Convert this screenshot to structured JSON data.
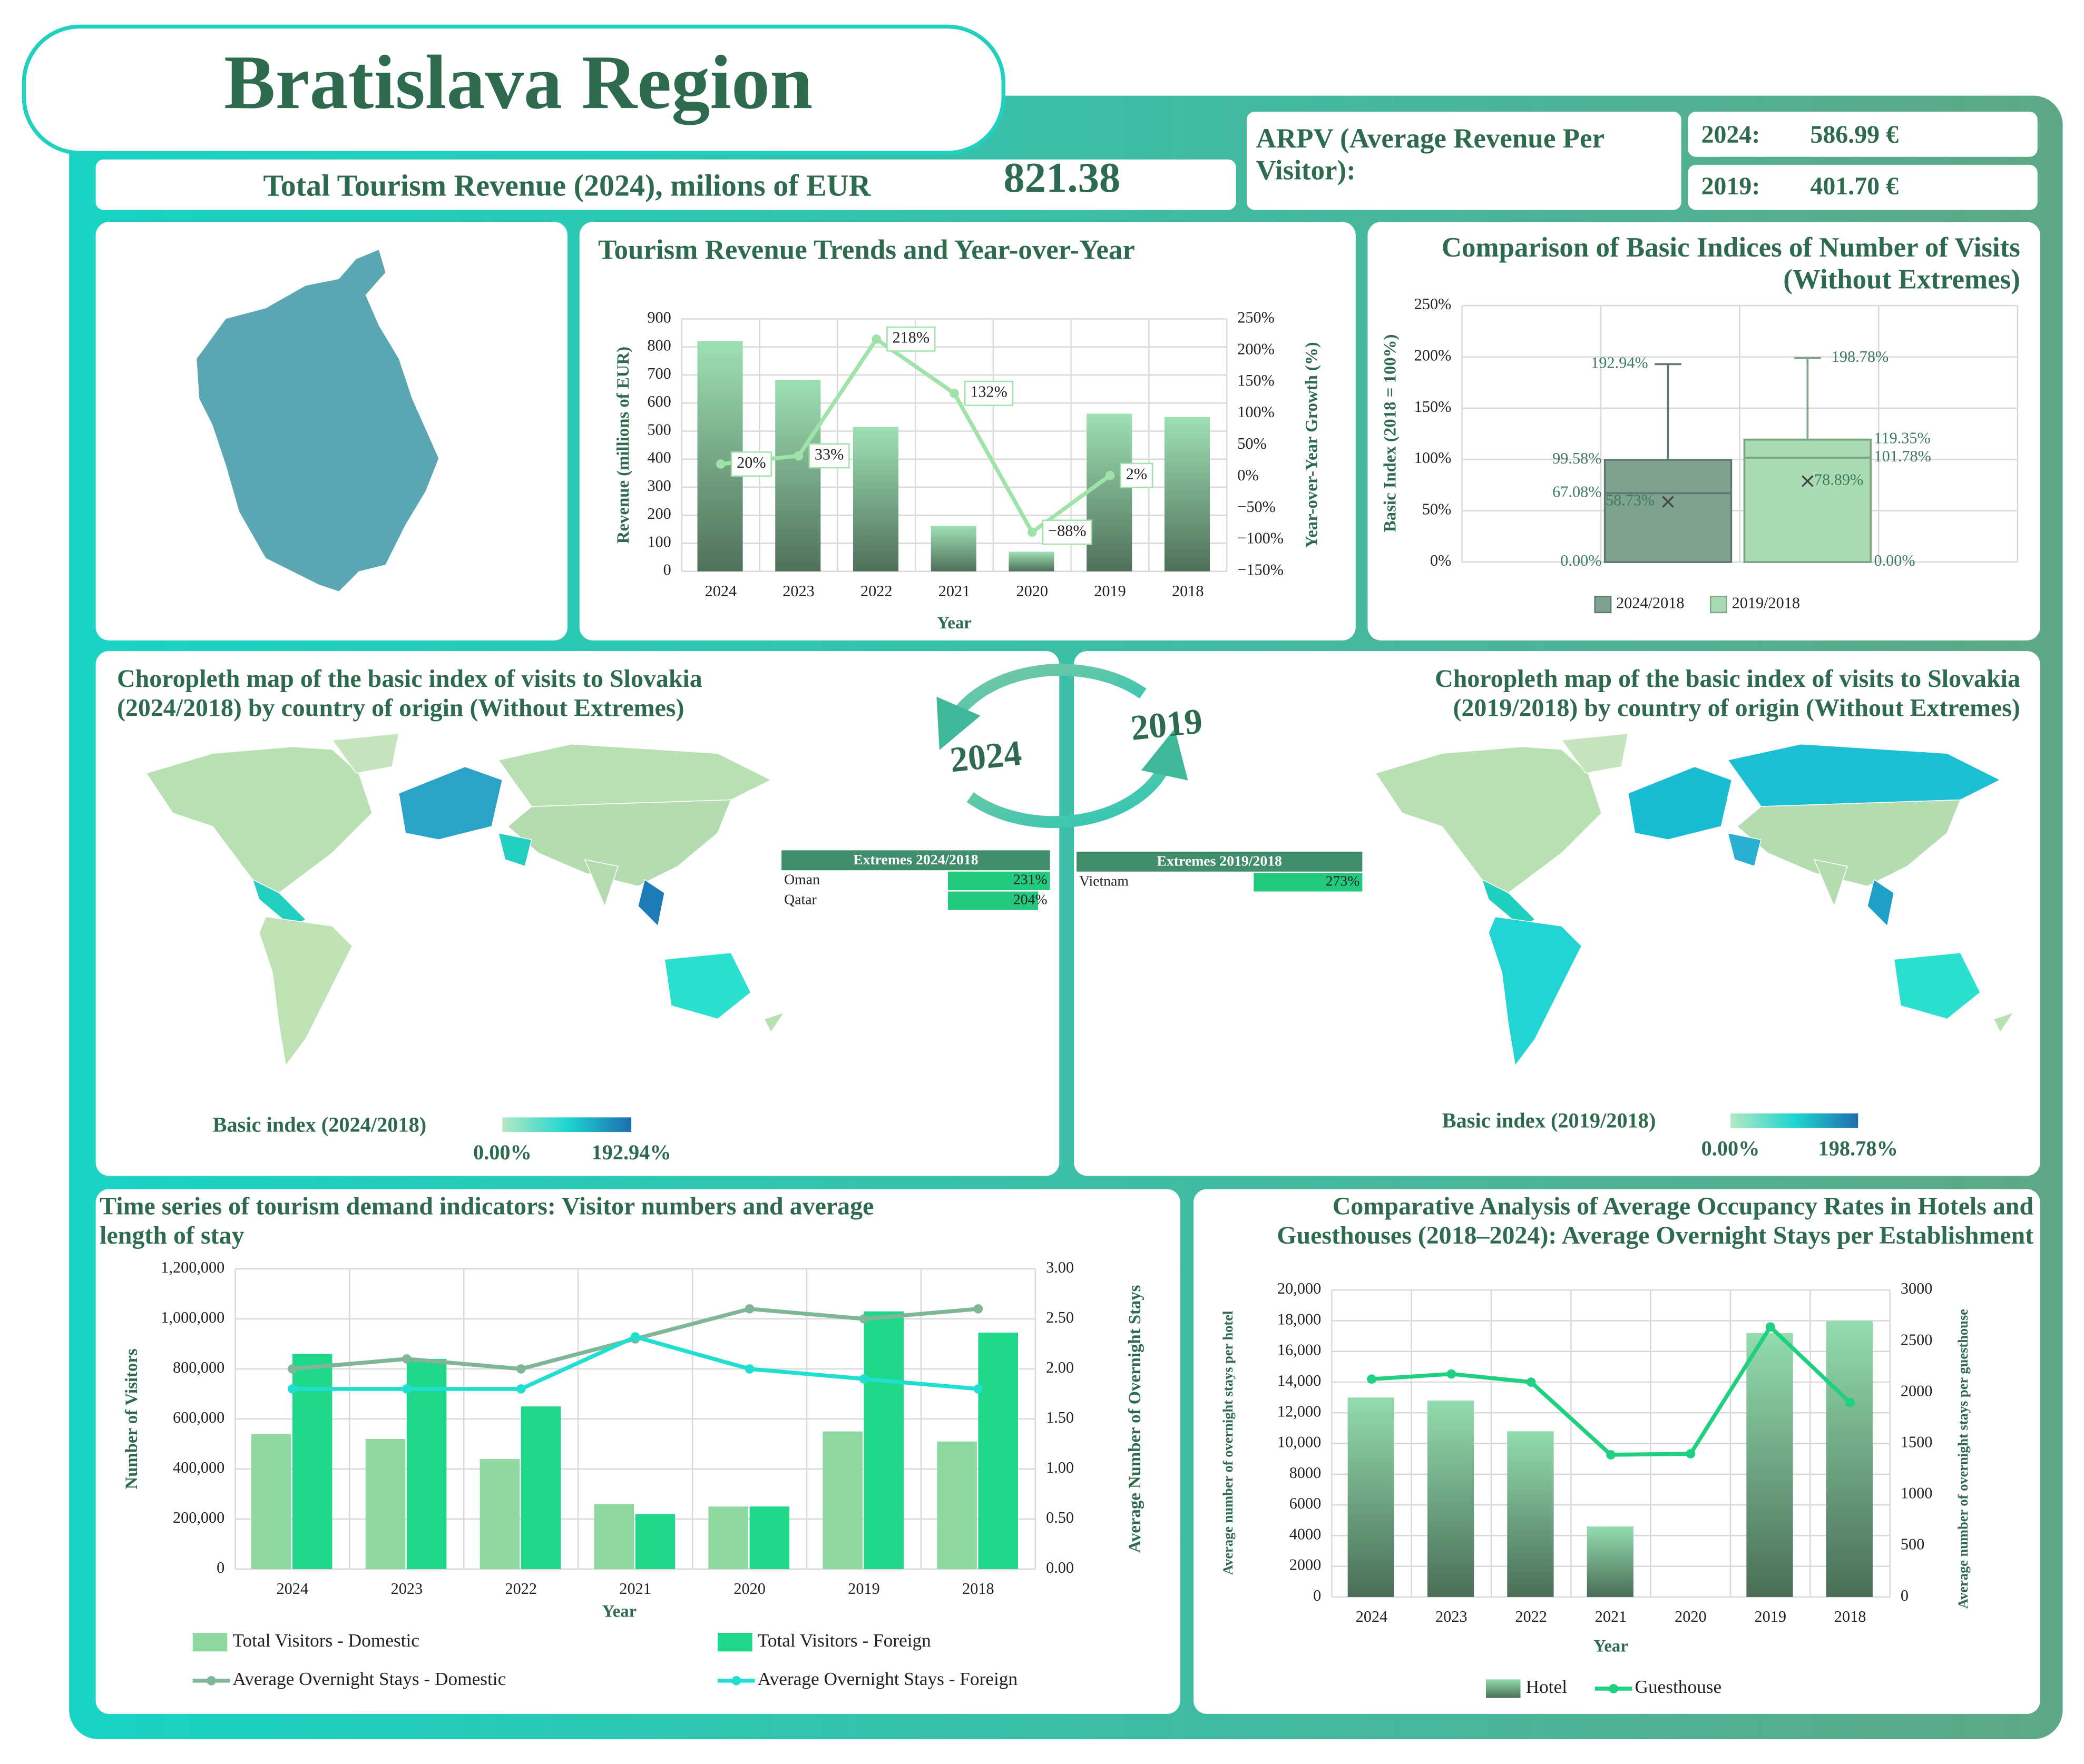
{
  "title": "Bratislava Region",
  "revenue": {
    "label": "Total Tourism Revenue (2024), milions of EUR",
    "value": "821.38"
  },
  "arpv": {
    "label": "ARPV (Average Revenue Per Visitor):",
    "rows": [
      {
        "year": "2024:",
        "value": "586.99 €"
      },
      {
        "year": "2019:",
        "value": "401.70 €"
      }
    ]
  },
  "cycle_labels": [
    "2024",
    "2019"
  ],
  "chart_data": [
    {
      "type": "bar",
      "title": "Tourism Revenue Trends and Year-over-Year",
      "x_label": "Year",
      "y_label": "Revenue (millions of EUR)",
      "y2_label": "Year-over-Year Growth (%)",
      "gradient": true,
      "grid": true,
      "categories": [
        "2024",
        "2023",
        "2022",
        "2021",
        "2020",
        "2019",
        "2018"
      ],
      "series": [
        {
          "type": "bar",
          "color": "#9ee0b4",
          "values": [
            821,
            683,
            515,
            162,
            70,
            562,
            550
          ]
        },
        {
          "type": "line",
          "axis": "y2",
          "color": "#9fe3a9",
          "values": [
            20,
            33,
            218,
            132,
            -88,
            2,
            null
          ],
          "value_labels": [
            "20%",
            "33%",
            "218%",
            "132%",
            "−88%",
            "2%",
            null
          ]
        }
      ],
      "ylim": [
        0,
        900
      ],
      "yticks": [
        0,
        100,
        200,
        300,
        400,
        500,
        600,
        700,
        800,
        900
      ],
      "y2lim": [
        -150,
        250
      ],
      "y2ticks": [
        {
          "value": -150,
          "label": "−150%"
        },
        {
          "value": -100,
          "label": "−100%"
        },
        {
          "value": -50,
          "label": "−50%"
        },
        {
          "value": 0,
          "label": "0%"
        },
        {
          "value": 50,
          "label": "50%"
        },
        {
          "value": 100,
          "label": "100%"
        },
        {
          "value": 150,
          "label": "150%"
        },
        {
          "value": 200,
          "label": "200%"
        },
        {
          "value": 250,
          "label": "250%"
        }
      ]
    },
    {
      "type": "box",
      "title": "Comparison of Basic Indices of Number of Visits (Without Extremes)",
      "y_label": "Basic Index (2018 = 100%)",
      "grid": true,
      "ylim": [
        0,
        250
      ],
      "yticks": [
        {
          "value": 0,
          "label": "0%"
        },
        {
          "value": 50,
          "label": "50%"
        },
        {
          "value": 100,
          "label": "100%"
        },
        {
          "value": 150,
          "label": "150%"
        },
        {
          "value": 200,
          "label": "200%"
        },
        {
          "value": 250,
          "label": "250%"
        }
      ],
      "series": [
        {
          "name": "2024/2018",
          "color": "#7fa190",
          "min": 0,
          "q1": 0,
          "median": 67.08,
          "mean": 58.73,
          "q3": 99.58,
          "max": 192.94,
          "value_labels": {
            "min": "0.00%",
            "median": "67.08%",
            "mean": "58.73%",
            "q3": "99.58%",
            "max": "192.94%"
          }
        },
        {
          "name": "2019/2018",
          "color": "#a9dcb2",
          "min": 0,
          "q1": 0,
          "median": 101.78,
          "mean": 78.89,
          "q3": 119.35,
          "max": 198.78,
          "value_labels": {
            "min": "0.00%",
            "median": "101.78%",
            "mean": "78.89%",
            "q3": "119.35%",
            "max": "198.78%"
          }
        }
      ]
    },
    {
      "type": "map",
      "title": "Choropleth map of the basic index of visits to Slovakia (2024/2018) by country of origin (Without Extremes)",
      "legend_title": "Basic index (2024/2018)",
      "scale": [
        {
          "value": 0,
          "label": "0.00%"
        },
        {
          "value": 192.94,
          "label": "192.94%"
        }
      ],
      "extremes": {
        "title": "Extremes 2024/2018",
        "countries": [
          "Oman",
          "Qatar"
        ],
        "values": [
          231,
          204
        ],
        "value_labels": [
          "231%",
          "204%"
        ]
      }
    },
    {
      "type": "map",
      "title": "Choropleth map of the basic index of visits to Slovakia (2019/2018) by country of origin (Without Extremes)",
      "legend_title": "Basic index (2019/2018)",
      "scale": [
        {
          "value": 0,
          "label": "0.00%"
        },
        {
          "value": 198.78,
          "label": "198.78%"
        }
      ],
      "extremes": {
        "title": "Extremes 2019/2018",
        "countries": [
          "Vietnam"
        ],
        "values": [
          273
        ],
        "value_labels": [
          "273%"
        ]
      }
    },
    {
      "type": "bar",
      "title": "Time series of tourism demand indicators: Visitor numbers and average length of stay",
      "x_label": "Year",
      "y_label": "Number of Visitors",
      "y2_label": "Average Number of Overnight Stays",
      "grid": true,
      "categories": [
        "2024",
        "2023",
        "2022",
        "2021",
        "2020",
        "2019",
        "2018"
      ],
      "series": [
        {
          "name": "Total Visitors - Domestic",
          "type": "bar",
          "color": "#8fd9a0",
          "values": [
            540000,
            520000,
            440000,
            260000,
            250000,
            550000,
            510000
          ]
        },
        {
          "name": "Total Visitors - Foreign",
          "type": "bar",
          "color": "#1fd88a",
          "values": [
            860000,
            840000,
            650000,
            220000,
            250000,
            1030000,
            945000
          ]
        },
        {
          "name": "Average Overnight Stays - Domestic",
          "type": "line",
          "axis": "y2",
          "color": "#80b698",
          "values": [
            2.0,
            2.1,
            2.0,
            2.3,
            2.6,
            2.5,
            2.6
          ]
        },
        {
          "name": "Average Overnight Stays - Foreign",
          "type": "line",
          "axis": "y2",
          "color": "#1fe0d0",
          "values": [
            1.8,
            1.8,
            1.8,
            2.32,
            2.0,
            1.9,
            1.8
          ]
        }
      ],
      "ylim": [
        0,
        1200000
      ],
      "yticks": [
        0,
        {
          "value": 200000,
          "label": "200,000"
        },
        {
          "value": 400000,
          "label": "400,000"
        },
        {
          "value": 600000,
          "label": "600,000"
        },
        {
          "value": 800000,
          "label": "800,000"
        },
        {
          "value": 1000000,
          "label": "1,000,000"
        },
        {
          "value": 1200000,
          "label": "1,200,000"
        }
      ],
      "y2lim": [
        0,
        3
      ],
      "y2ticks": [
        {
          "value": 0,
          "label": "0.00"
        },
        {
          "value": 0.5,
          "label": "0.50"
        },
        {
          "value": 1,
          "label": "1.00"
        },
        {
          "value": 1.5,
          "label": "1.50"
        },
        {
          "value": 2,
          "label": "2.00"
        },
        {
          "value": 2.5,
          "label": "2.50"
        },
        {
          "value": 3,
          "label": "3.00"
        }
      ]
    },
    {
      "type": "bar",
      "title": "Comparative Analysis of Average Occupancy Rates in Hotels and Guesthouses (2018–2024): Average Overnight Stays per Establishment",
      "x_label": "Year",
      "y_label": "Average number of overnight stays per hotel",
      "y2_label": "Average number of overnight stays per guesthouse",
      "gradient": true,
      "grid": true,
      "categories": [
        "2024",
        "2023",
        "2022",
        "2021",
        "2020",
        "2019",
        "2018"
      ],
      "series": [
        {
          "name": "Hotel",
          "type": "bar",
          "color": "#93dcae",
          "values": [
            13000,
            12800,
            10800,
            4600,
            null,
            17200,
            18000
          ]
        },
        {
          "name": "Guesthouse",
          "type": "line",
          "axis": "y2",
          "color": "#1fd080",
          "values": [
            2130,
            2180,
            2100,
            1390,
            1400,
            2640,
            1900
          ]
        }
      ],
      "ylim": [
        0,
        20000
      ],
      "yticks": [
        0,
        2000,
        4000,
        6000,
        8000,
        {
          "value": 10000,
          "label": "10,000"
        },
        {
          "value": 12000,
          "label": "12,000"
        },
        {
          "value": 14000,
          "label": "14,000"
        },
        {
          "value": 16000,
          "label": "16,000"
        },
        {
          "value": 18000,
          "label": "18,000"
        },
        {
          "value": 20000,
          "label": "20,000"
        }
      ],
      "y2lim": [
        0,
        3000
      ],
      "y2ticks": [
        0,
        500,
        1000,
        1500,
        2000,
        2500,
        3000
      ]
    }
  ]
}
